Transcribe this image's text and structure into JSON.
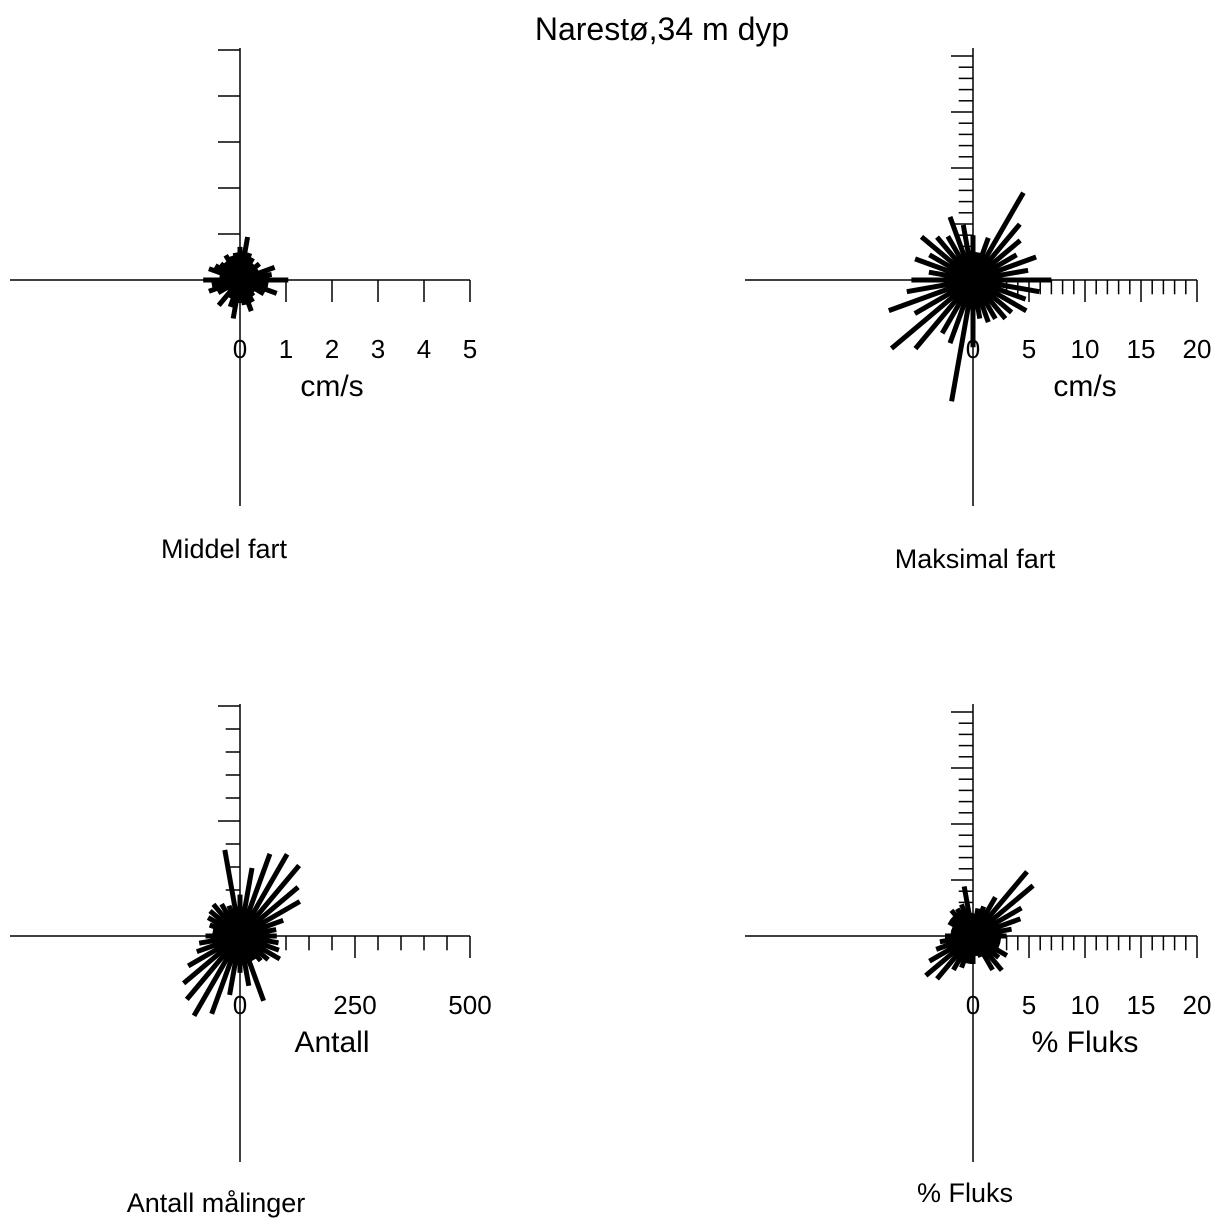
{
  "title": "Narestø,34 m dyp",
  "chart_data": [
    {
      "type": "polar-rose",
      "caption": "Middel fart",
      "unit_label": "cm/s",
      "tick_labels": [
        "0",
        "1",
        "2",
        "3",
        "4",
        "5"
      ],
      "max": 5,
      "directions_deg": [
        0,
        10,
        20,
        30,
        40,
        50,
        60,
        70,
        80,
        90,
        100,
        110,
        120,
        130,
        140,
        150,
        160,
        170,
        180,
        190,
        200,
        210,
        220,
        230,
        240,
        250,
        260,
        270,
        280,
        290,
        300,
        310,
        320,
        330,
        340,
        350
      ],
      "values": [
        0.72,
        0.95,
        0.62,
        0.55,
        0.45,
        0.55,
        0.45,
        0.8,
        0.7,
        1.05,
        0.62,
        0.85,
        0.6,
        0.4,
        0.45,
        0.55,
        0.72,
        0.55,
        0.5,
        0.85,
        0.62,
        0.45,
        0.72,
        0.35,
        0.55,
        0.72,
        0.62,
        0.8,
        0.45,
        0.72,
        0.62,
        0.55,
        0.5,
        0.62,
        0.55,
        0.6
      ]
    },
    {
      "type": "polar-rose",
      "caption": "Maksimal fart",
      "unit_label": "cm/s",
      "tick_labels": [
        "0",
        "5",
        "10",
        "15",
        "20"
      ],
      "max": 20,
      "directions_deg": [
        0,
        10,
        20,
        30,
        40,
        50,
        60,
        70,
        80,
        90,
        100,
        110,
        120,
        130,
        140,
        150,
        160,
        170,
        180,
        190,
        200,
        210,
        220,
        230,
        240,
        250,
        260,
        270,
        280,
        290,
        300,
        310,
        320,
        330,
        340,
        350
      ],
      "values": [
        4.0,
        2.5,
        4.0,
        9.0,
        6.5,
        5.5,
        4.5,
        6.0,
        5.0,
        7.0,
        6.0,
        5.0,
        5.5,
        4.5,
        4.5,
        4.0,
        4.0,
        3.5,
        6.0,
        11.0,
        6.0,
        5.5,
        8.0,
        9.5,
        6.0,
        8.0,
        6.0,
        5.5,
        4.0,
        5.5,
        4.5,
        6.0,
        5.0,
        4.5,
        6.0,
        5.0
      ]
    },
    {
      "type": "polar-rose",
      "caption": "Antall målinger",
      "unit_label": "Antall",
      "tick_labels": [
        "0",
        "250",
        "500"
      ],
      "max": 500,
      "directions_deg": [
        0,
        10,
        20,
        30,
        40,
        50,
        60,
        70,
        80,
        90,
        100,
        110,
        120,
        130,
        140,
        150,
        160,
        170,
        180,
        190,
        200,
        210,
        220,
        230,
        240,
        250,
        260,
        270,
        280,
        290,
        300,
        310,
        320,
        330,
        340,
        350
      ],
      "values": [
        90,
        150,
        190,
        205,
        200,
        165,
        150,
        100,
        80,
        80,
        85,
        90,
        100,
        80,
        70,
        60,
        150,
        110,
        80,
        130,
        180,
        200,
        180,
        160,
        130,
        100,
        90,
        75,
        60,
        70,
        80,
        85,
        90,
        80,
        70,
        190
      ]
    },
    {
      "type": "polar-rose",
      "caption": "% Fluks",
      "unit_label": "% Fluks",
      "tick_labels": [
        "0",
        "5",
        "10",
        "15",
        "20"
      ],
      "max": 20,
      "directions_deg": [
        0,
        10,
        20,
        30,
        40,
        50,
        60,
        70,
        80,
        90,
        100,
        110,
        120,
        130,
        140,
        150,
        160,
        170,
        180,
        190,
        200,
        210,
        220,
        230,
        240,
        250,
        260,
        270,
        280,
        290,
        300,
        310,
        320,
        330,
        340,
        350
      ],
      "values": [
        2.0,
        2.5,
        2.8,
        4.0,
        7.5,
        7.0,
        5.0,
        4.5,
        3.5,
        3.0,
        2.5,
        2.5,
        3.5,
        3.0,
        4.0,
        3.5,
        2.0,
        1.8,
        2.5,
        2.5,
        3.0,
        3.5,
        5.0,
        5.5,
        4.5,
        3.5,
        3.0,
        2.5,
        2.0,
        2.0,
        2.5,
        2.5,
        3.0,
        2.8,
        3.0,
        4.5
      ]
    }
  ]
}
